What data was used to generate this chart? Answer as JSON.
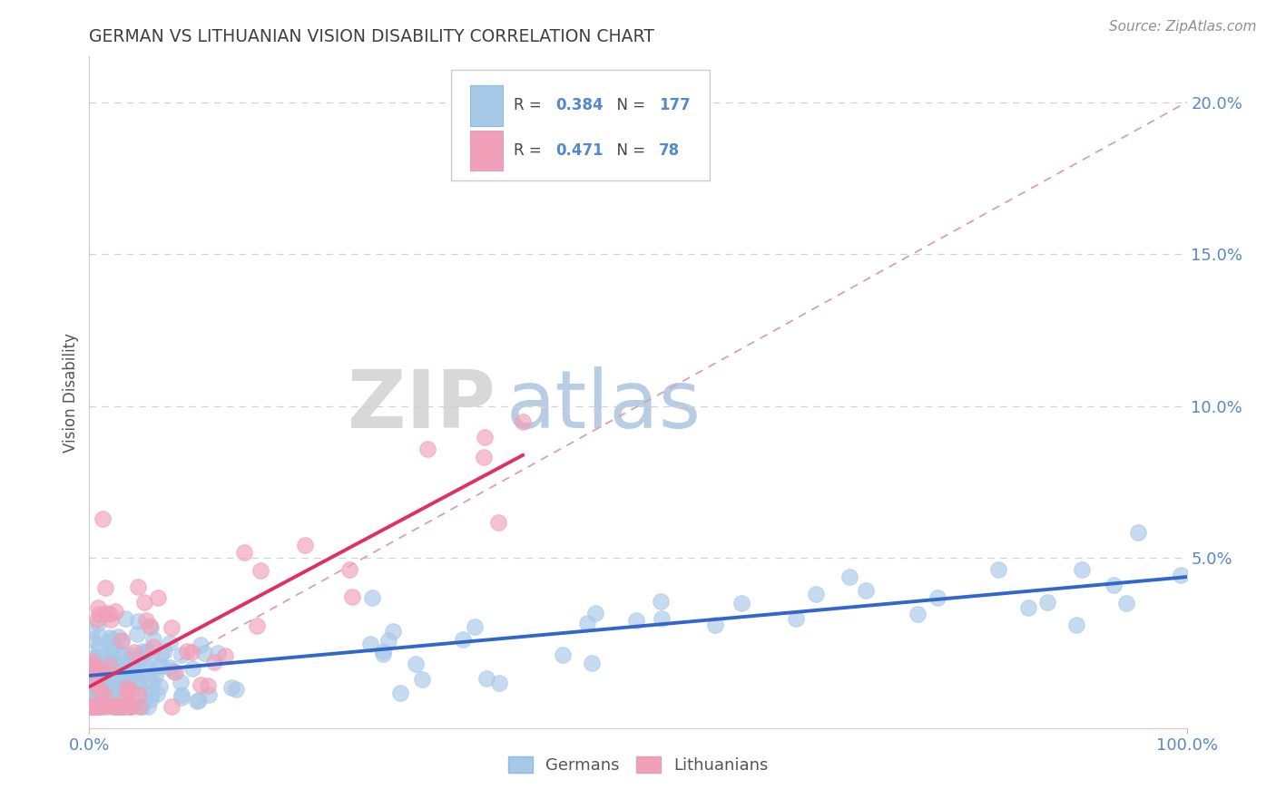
{
  "title": "GERMAN VS LITHUANIAN VISION DISABILITY CORRELATION CHART",
  "source": "Source: ZipAtlas.com",
  "ylabel": "Vision Disability",
  "legend_r_german": "0.384",
  "legend_n_german": "177",
  "legend_r_lith": "0.471",
  "legend_n_lith": "78",
  "german_color": "#A8C8E8",
  "lithuanian_color": "#F0A0B8",
  "german_line_color": "#3366CC",
  "lithuanian_line_color": "#E03060",
  "ref_line_color": "#D8A0B0",
  "grid_color": "#D0D0E0",
  "background_color": "#FFFFFF",
  "watermark_zip": "ZIP",
  "watermark_atlas": "atlas",
  "watermark_zip_color": "#D8D8D8",
  "watermark_atlas_color": "#B8CCE4",
  "title_color": "#404040",
  "axis_label_color": "#5588CC",
  "source_color": "#909090",
  "legend_text_color": "#404040",
  "xlim": [
    0.0,
    1.0
  ],
  "ylim": [
    -0.006,
    0.215
  ]
}
